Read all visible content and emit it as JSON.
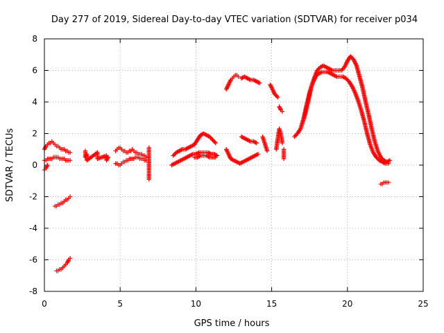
{
  "chart_data": {
    "type": "scatter",
    "title": "Day 277 of 2019, Sidereal Day-to-day VTEC variation (SDTVAR) for receiver p034",
    "xlabel": "GPS time / hours",
    "ylabel": "SDTVAR / TECUs",
    "xlim": [
      0,
      25
    ],
    "ylim": [
      -8,
      8
    ],
    "xticks": [
      "0",
      "5",
      "10",
      "15",
      "20",
      "25"
    ],
    "yticks": [
      "-8",
      "-6",
      "-4",
      "-2",
      "0",
      "2",
      "4",
      "6",
      "8"
    ],
    "grid": true,
    "marker": "plus",
    "color": "#ff0000",
    "series": [
      {
        "name": "SDTVAR",
        "segments": [
          {
            "x": [
              0.0,
              0.1,
              0.2,
              0.3,
              0.4,
              0.5,
              0.6,
              0.7,
              0.8,
              0.9,
              1.0,
              1.1,
              1.2,
              1.3,
              1.4,
              1.5,
              1.6,
              1.7
            ],
            "y": [
              1.0,
              1.2,
              1.3,
              1.4,
              1.4,
              1.5,
              1.4,
              1.3,
              1.2,
              1.2,
              1.1,
              1.0,
              1.0,
              1.0,
              0.9,
              0.9,
              0.8,
              0.8
            ]
          },
          {
            "x": [
              0.0,
              0.1,
              0.2,
              0.3,
              0.4,
              0.5,
              0.6,
              0.7,
              0.8,
              0.9,
              1.0,
              1.1,
              1.2,
              1.3,
              1.4,
              1.5,
              1.6,
              1.7
            ],
            "y": [
              0.3,
              0.3,
              0.4,
              0.4,
              0.4,
              0.4,
              0.5,
              0.5,
              0.5,
              0.5,
              0.4,
              0.4,
              0.4,
              0.4,
              0.3,
              0.3,
              0.3,
              0.3
            ]
          },
          {
            "x": [
              0.0,
              0.1,
              0.2
            ],
            "y": [
              -0.3,
              -0.2,
              0.0
            ]
          },
          {
            "x": [
              0.7,
              0.8,
              0.9,
              1.0,
              1.1,
              1.2,
              1.3,
              1.4,
              1.5,
              1.6,
              1.7
            ],
            "y": [
              -2.6,
              -2.6,
              -2.5,
              -2.5,
              -2.4,
              -2.4,
              -2.3,
              -2.2,
              -2.2,
              -2.1,
              -2.0
            ]
          },
          {
            "x": [
              0.8,
              0.9,
              1.0,
              1.1,
              1.2,
              1.3,
              1.4,
              1.5,
              1.6,
              1.7
            ],
            "y": [
              -6.7,
              -6.7,
              -6.6,
              -6.6,
              -6.5,
              -6.4,
              -6.3,
              -6.2,
              -6.0,
              -5.9
            ]
          },
          {
            "x": [
              2.7,
              2.7,
              2.8,
              2.8,
              3.5,
              3.5,
              4.1,
              4.1,
              4.2
            ],
            "y": [
              0.9,
              0.5,
              0.7,
              0.3,
              0.8,
              0.4,
              0.6,
              0.3,
              0.5
            ]
          },
          {
            "x": [
              4.7,
              4.8,
              4.9,
              5.0,
              5.1,
              5.2,
              5.3,
              5.4,
              5.5,
              5.6,
              5.7,
              5.8,
              5.9,
              6.0,
              6.1,
              6.2,
              6.3,
              6.4,
              6.5,
              6.6,
              6.7
            ],
            "y": [
              0.9,
              1.0,
              1.1,
              1.1,
              1.0,
              0.9,
              0.9,
              0.8,
              0.8,
              0.9,
              0.9,
              1.0,
              0.9,
              0.8,
              0.8,
              0.7,
              0.7,
              0.7,
              0.6,
              0.6,
              0.5
            ]
          },
          {
            "x": [
              4.7,
              4.8,
              4.9,
              5.0,
              5.1,
              5.2,
              5.3,
              5.4,
              5.5,
              5.6,
              5.7,
              5.8,
              5.9,
              6.0,
              6.1,
              6.2,
              6.3,
              6.4,
              6.5,
              6.6,
              6.7
            ],
            "y": [
              0.1,
              0.1,
              0.0,
              0.0,
              0.1,
              0.2,
              0.2,
              0.3,
              0.3,
              0.4,
              0.4,
              0.4,
              0.4,
              0.5,
              0.5,
              0.5,
              0.4,
              0.4,
              0.4,
              0.3,
              0.3
            ]
          },
          {
            "x": [
              6.9,
              6.9,
              6.9,
              6.9,
              6.9,
              6.9
            ],
            "y": [
              1.1,
              0.7,
              0.3,
              -0.2,
              -0.6,
              -0.9
            ]
          },
          {
            "x": [
              8.4,
              8.6,
              8.8,
              9.0,
              9.2,
              9.4,
              9.6,
              9.8,
              10.0,
              10.2,
              10.4,
              10.6,
              10.8,
              11.0,
              11.2,
              11.4
            ],
            "y": [
              0.0,
              0.1,
              0.2,
              0.3,
              0.4,
              0.5,
              0.6,
              0.7,
              0.7,
              0.8,
              0.8,
              0.8,
              0.8,
              0.7,
              0.7,
              0.6
            ]
          },
          {
            "x": [
              8.5,
              8.7,
              8.9,
              9.1,
              9.3,
              9.5,
              9.7,
              9.9,
              10.1,
              10.3,
              10.5,
              10.7,
              10.9,
              11.1,
              11.3
            ],
            "y": [
              0.6,
              0.8,
              0.9,
              1.0,
              1.0,
              1.1,
              1.2,
              1.3,
              1.6,
              1.9,
              2.0,
              1.9,
              1.8,
              1.6,
              1.4
            ]
          },
          {
            "x": [
              9.9,
              10.1,
              10.3,
              10.5,
              10.7,
              10.9,
              11.1,
              11.3
            ],
            "y": [
              0.5,
              0.5,
              0.6,
              0.6,
              0.6,
              0.5,
              0.5,
              0.5
            ]
          },
          {
            "x": [
              12.0,
              12.1,
              12.2,
              12.3,
              12.4,
              12.5,
              12.6,
              12.7,
              12.8
            ],
            "y": [
              4.8,
              5.0,
              5.2,
              5.4,
              5.5,
              5.6,
              5.7,
              5.7,
              5.6
            ]
          },
          {
            "x": [
              12.0,
              12.1,
              12.2,
              12.3,
              12.5,
              12.7,
              12.9,
              13.1,
              13.3,
              13.5,
              13.7,
              13.9,
              14.1
            ],
            "y": [
              1.0,
              0.8,
              0.6,
              0.4,
              0.3,
              0.2,
              0.1,
              0.2,
              0.3,
              0.4,
              0.5,
              0.6,
              0.7
            ]
          },
          {
            "x": [
              13.0,
              13.2,
              13.4,
              13.6,
              13.8,
              14.0,
              14.2
            ],
            "y": [
              5.5,
              5.6,
              5.5,
              5.4,
              5.4,
              5.3,
              5.2
            ]
          },
          {
            "x": [
              13.0,
              13.2,
              13.4,
              13.6,
              13.8,
              14.0
            ],
            "y": [
              1.8,
              1.7,
              1.6,
              1.5,
              1.5,
              1.4
            ]
          },
          {
            "x": [
              14.4,
              14.5,
              14.6,
              14.7
            ],
            "y": [
              1.8,
              1.5,
              1.2,
              0.9
            ]
          },
          {
            "x": [
              14.9,
              15.0,
              15.2,
              15.4
            ],
            "y": [
              5.1,
              4.9,
              4.5,
              4.3
            ]
          },
          {
            "x": [
              15.3,
              15.5,
              15.6,
              15.7
            ],
            "y": [
              1.0,
              2.3,
              2.0,
              1.4
            ]
          },
          {
            "x": [
              15.5,
              15.6,
              15.7
            ],
            "y": [
              3.7,
              3.5,
              3.4
            ]
          },
          {
            "x": [
              15.8,
              15.8,
              15.8
            ],
            "y": [
              1.0,
              0.7,
              0.4
            ]
          },
          {
            "x": [
              16.5,
              16.7,
              16.9,
              17.1,
              17.3,
              17.5,
              17.7,
              17.9,
              18.1,
              18.3,
              18.5,
              18.7,
              18.9,
              19.1,
              19.3,
              19.5,
              19.7,
              19.9,
              20.1,
              20.3,
              20.5,
              20.7,
              20.9,
              21.1,
              21.3,
              21.5,
              21.7,
              21.9,
              22.1,
              22.3,
              22.5,
              22.7
            ],
            "y": [
              1.8,
              2.0,
              2.3,
              2.9,
              3.8,
              4.6,
              5.2,
              5.6,
              5.8,
              5.9,
              5.9,
              5.9,
              5.8,
              5.7,
              5.6,
              5.6,
              5.6,
              5.5,
              5.3,
              5.0,
              4.6,
              4.1,
              3.5,
              2.8,
              2.0,
              1.3,
              0.8,
              0.5,
              0.3,
              0.2,
              0.1,
              0.1
            ]
          },
          {
            "x": [
              17.0,
              17.2,
              17.4,
              17.6,
              17.8,
              18.0,
              18.2,
              18.4,
              18.6,
              18.8,
              19.0,
              19.2,
              19.4,
              19.6,
              19.8,
              20.0,
              20.2,
              20.4,
              20.6,
              20.8,
              21.0,
              21.2,
              21.4,
              21.6,
              21.8,
              22.0,
              22.2,
              22.4,
              22.6,
              22.8
            ],
            "y": [
              2.6,
              3.2,
              4.0,
              4.9,
              5.5,
              6.0,
              6.2,
              6.3,
              6.2,
              6.1,
              6.0,
              6.0,
              6.0,
              6.0,
              6.2,
              6.6,
              6.9,
              6.7,
              6.3,
              5.6,
              4.9,
              4.0,
              3.2,
              2.3,
              1.5,
              0.9,
              0.5,
              0.3,
              0.2,
              0.3
            ]
          },
          {
            "x": [
              22.2,
              22.3,
              22.4,
              22.5,
              22.6,
              22.7
            ],
            "y": [
              -1.2,
              -1.2,
              -1.1,
              -1.1,
              -1.1,
              -1.1
            ]
          }
        ]
      }
    ]
  }
}
